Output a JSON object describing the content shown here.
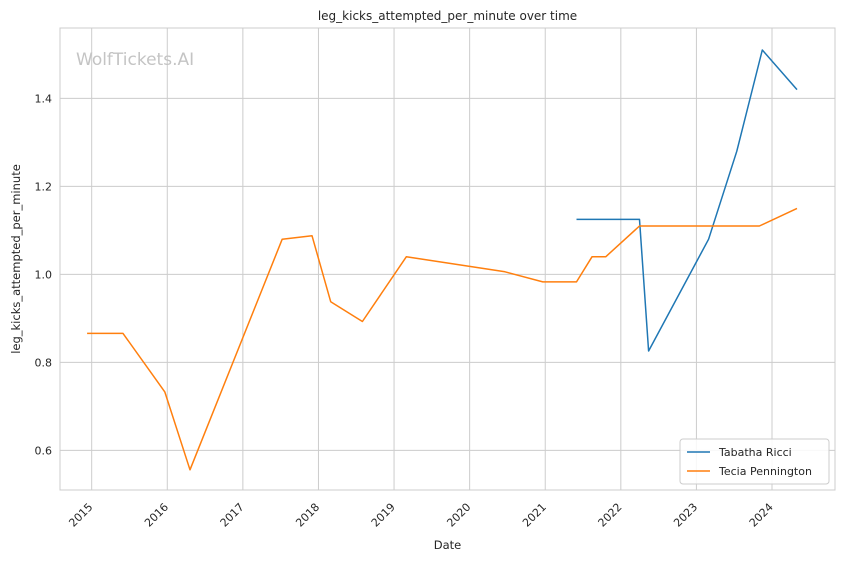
{
  "chart_data": {
    "type": "line",
    "title": "leg_kicks_attempted_per_minute over time",
    "xlabel": "Date",
    "ylabel": "leg_kicks_attempted_per_minute",
    "watermark": "WolfTickets.AI",
    "xlim": [
      "2014-08-01",
      "2024-11-01"
    ],
    "ylim": [
      0.51,
      1.56
    ],
    "x_ticks": [
      "2015",
      "2016",
      "2017",
      "2018",
      "2019",
      "2020",
      "2021",
      "2022",
      "2023",
      "2024"
    ],
    "y_ticks": [
      "0.6",
      "0.8",
      "1.0",
      "1.2",
      "1.4"
    ],
    "y_tick_values": [
      0.6,
      0.8,
      1.0,
      1.2,
      1.4
    ],
    "grid": true,
    "legend_position": "bottom-right",
    "series": [
      {
        "name": "Tabatha Ricci",
        "color": "#1f77b4",
        "points": [
          {
            "x": "2021-06-01",
            "y": 1.125
          },
          {
            "x": "2022-04-01",
            "y": 1.125
          },
          {
            "x": "2022-05-15",
            "y": 0.826
          },
          {
            "x": "2023-03-01",
            "y": 1.08
          },
          {
            "x": "2023-07-15",
            "y": 1.28
          },
          {
            "x": "2023-11-15",
            "y": 1.51
          },
          {
            "x": "2024-05-01",
            "y": 1.42
          }
        ]
      },
      {
        "name": "Tecia Pennington",
        "color": "#ff7f0e",
        "points": [
          {
            "x": "2014-12-10",
            "y": 0.866
          },
          {
            "x": "2015-06-01",
            "y": 0.866
          },
          {
            "x": "2015-12-20",
            "y": 0.733
          },
          {
            "x": "2016-04-20",
            "y": 0.556
          },
          {
            "x": "2017-07-10",
            "y": 1.08
          },
          {
            "x": "2017-12-01",
            "y": 1.088
          },
          {
            "x": "2018-03-01",
            "y": 0.938
          },
          {
            "x": "2018-08-01",
            "y": 0.893
          },
          {
            "x": "2019-03-01",
            "y": 1.04
          },
          {
            "x": "2020-06-20",
            "y": 1.006
          },
          {
            "x": "2020-12-20",
            "y": 0.983
          },
          {
            "x": "2021-06-01",
            "y": 0.983
          },
          {
            "x": "2021-08-15",
            "y": 1.04
          },
          {
            "x": "2021-10-20",
            "y": 1.04
          },
          {
            "x": "2022-04-01",
            "y": 1.11
          },
          {
            "x": "2023-11-01",
            "y": 1.11
          },
          {
            "x": "2024-05-01",
            "y": 1.15
          }
        ]
      }
    ]
  }
}
